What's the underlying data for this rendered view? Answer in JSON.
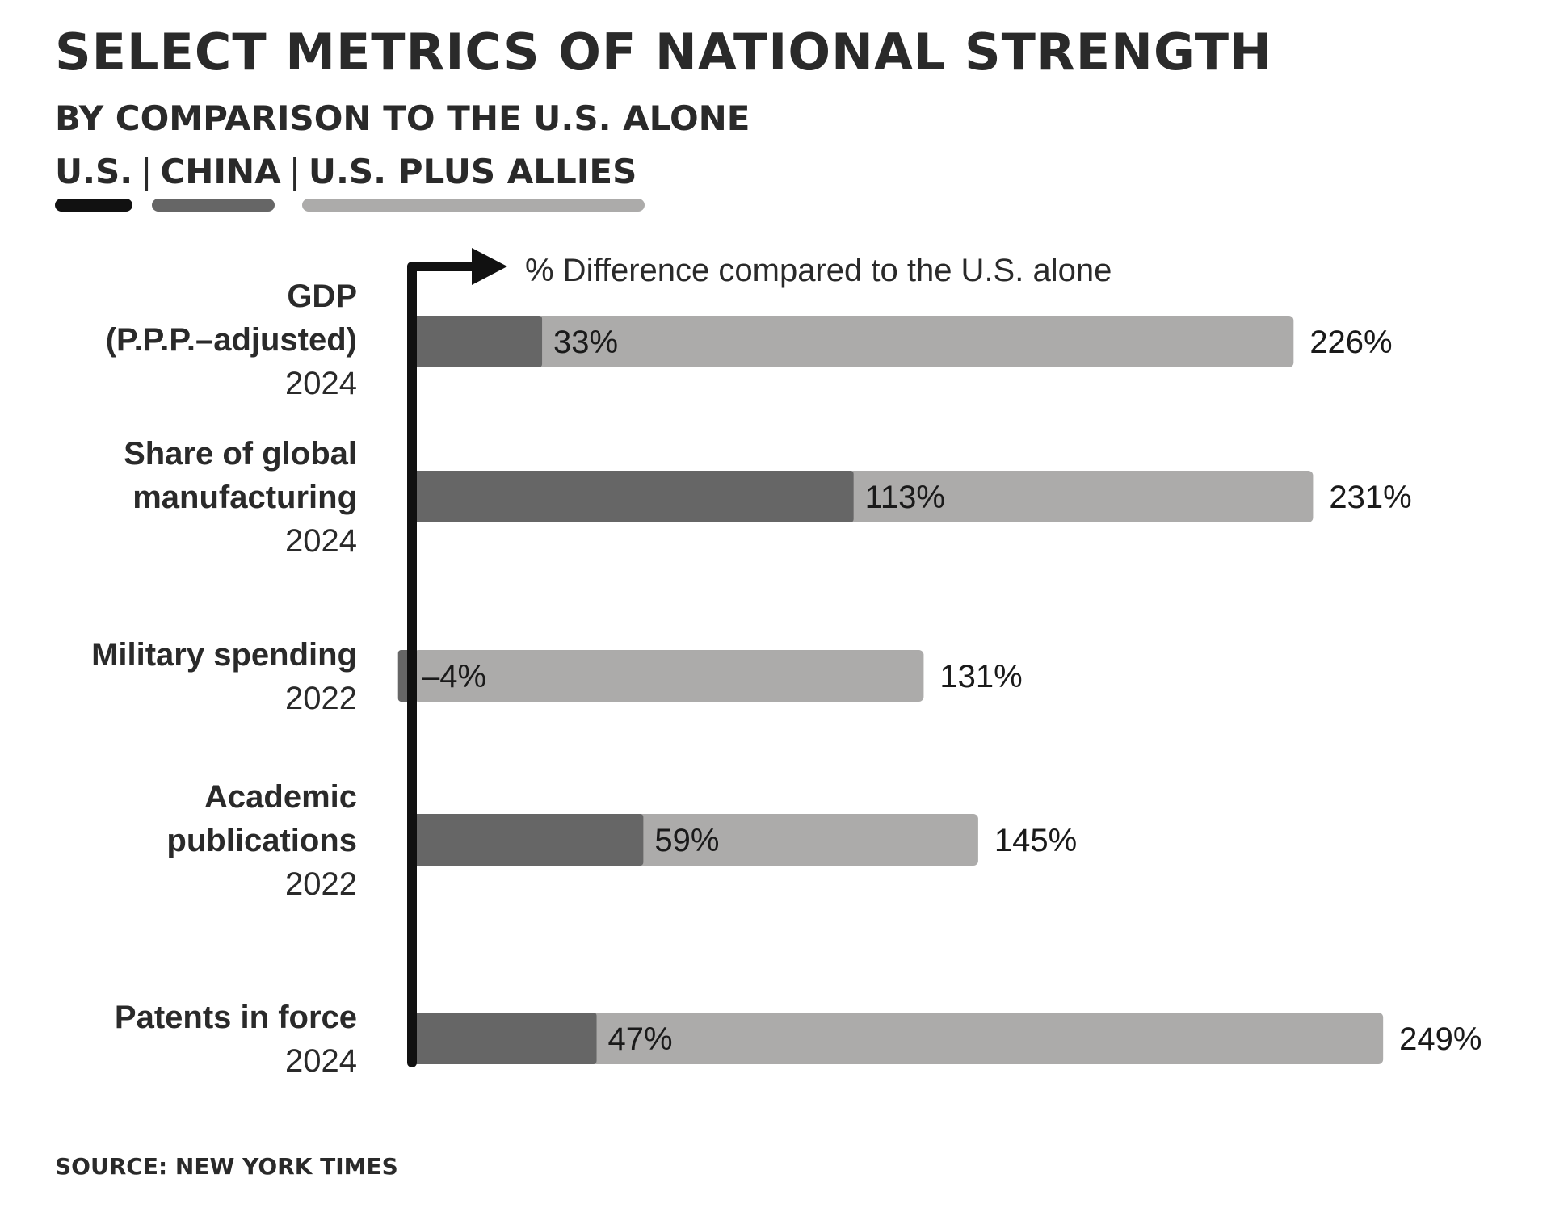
{
  "title": "SELECT METRICS OF NATIONAL STRENGTH",
  "subtitle": "BY COMPARISON TO THE U.S. ALONE",
  "legend": {
    "us": "U.S.",
    "china": "CHINA",
    "allies": "U.S. PLUS ALLIES",
    "separator": "|"
  },
  "source": "SOURCE: NEW YORK TIMES",
  "colors": {
    "us": "#111111",
    "china": "#666666",
    "allies": "#acabaa"
  },
  "chart_data": {
    "type": "bar",
    "orientation": "horizontal",
    "axis_label": "% Difference compared to the U.S. alone",
    "categories": [
      {
        "label": [
          "GDP",
          "(P.P.P.–adjusted)"
        ],
        "year": "2024"
      },
      {
        "label": [
          "Share of global",
          "manufacturing"
        ],
        "year": "2024"
      },
      {
        "label": [
          "Military spending"
        ],
        "year": "2022"
      },
      {
        "label": [
          "Academic",
          "publications"
        ],
        "year": "2022"
      },
      {
        "label": [
          "Patents in force"
        ],
        "year": "2024"
      }
    ],
    "series": [
      {
        "name": "CHINA",
        "values": [
          33,
          113,
          -4,
          59,
          47
        ],
        "labels": [
          "33%",
          "113%",
          "–4%",
          "59%",
          "47%"
        ]
      },
      {
        "name": "U.S. PLUS ALLIES",
        "values": [
          226,
          231,
          131,
          145,
          249
        ],
        "labels": [
          "226%",
          "231%",
          "131%",
          "145%",
          "249%"
        ]
      }
    ],
    "xlim": [
      -6,
      260
    ],
    "baseline": 0
  }
}
